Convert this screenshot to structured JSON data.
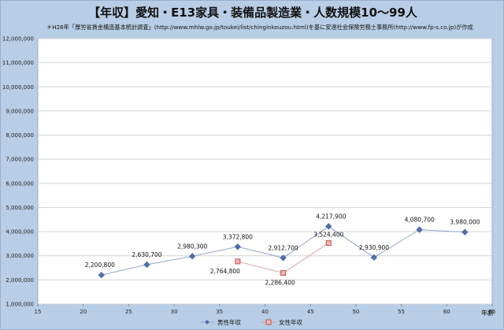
{
  "header": {
    "title": "【年収】愛知・E13家具・装備品製造業・人数規模10～99人",
    "subtitle": "＊H28年「厚労省賃金構造基本統計調査」(http://www.mhlw.go.jp/toukei/list/chinginkouzou.html)を基に安達社会保険労務士事務所(http://www.fp-s.co.jp)が作成"
  },
  "chart_data": {
    "type": "line",
    "xlabel": "年齢",
    "ylabel": "",
    "xlim": [
      15,
      65
    ],
    "ylim": [
      1000000,
      12000000
    ],
    "x_ticks": [
      15,
      20,
      25,
      30,
      35,
      40,
      45,
      50,
      55,
      60,
      65
    ],
    "y_ticks": [
      1000000,
      2000000,
      3000000,
      4000000,
      5000000,
      6000000,
      7000000,
      8000000,
      9000000,
      10000000,
      11000000,
      12000000
    ],
    "y_tick_labels": [
      "1,000,000",
      "2,000,000",
      "3,000,000",
      "4,000,000",
      "5,000,000",
      "6,000,000",
      "7,000,000",
      "8,000,000",
      "9,000,000",
      "10,000,000",
      "11,000,000",
      "12,000,000"
    ],
    "grid": "horizontal",
    "legend_position": "bottom",
    "series": [
      {
        "name": "男性年収",
        "color": "#4f6fa8",
        "marker": "diamond",
        "x": [
          22,
          27,
          32,
          37,
          42,
          47,
          52,
          57,
          62
        ],
        "values": [
          2200800,
          2630700,
          2980300,
          3372800,
          2912700,
          4217900,
          2930900,
          4080700,
          3980000
        ],
        "labels": [
          "2,200,800",
          "2,630,700",
          "2,980,300",
          "3,372,800",
          "2,912,700",
          "4,217,900",
          "2,930,900",
          "4,080,700",
          "3,980,000"
        ]
      },
      {
        "name": "女性年収",
        "color": "#c0504d",
        "marker": "square",
        "x": [
          37,
          42,
          47
        ],
        "values": [
          2764800,
          2286400,
          3524400
        ],
        "labels": [
          "2,764,800",
          "2,286,400",
          "3,524,400"
        ]
      }
    ]
  }
}
